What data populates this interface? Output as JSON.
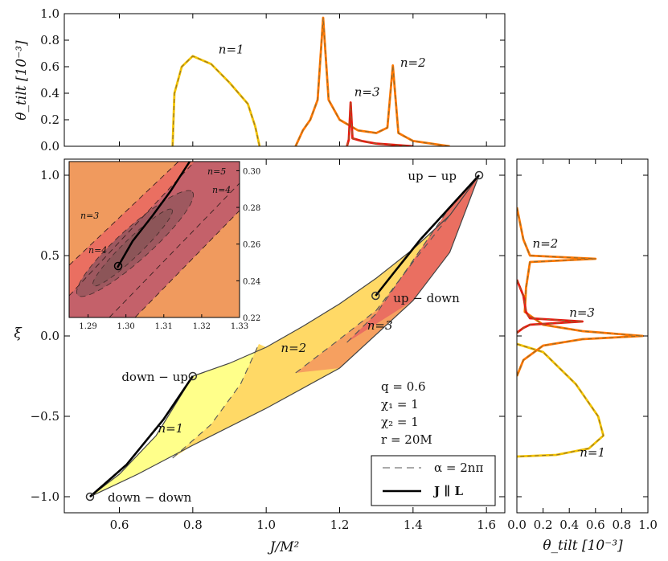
{
  "chart_data": {
    "type": "line",
    "title": "",
    "main": {
      "xlabel": "J/M²",
      "ylabel": "ξ",
      "xlim": [
        0.45,
        1.65
      ],
      "ylim": [
        -1.1,
        1.1
      ],
      "xticks": [
        0.6,
        0.8,
        1.0,
        1.2,
        1.4,
        1.6
      ],
      "xtick_labels": [
        "0.6",
        "0.8",
        "1.0",
        "1.2",
        "1.4",
        "1.6"
      ],
      "yticks": [
        -1.0,
        -0.5,
        0.0,
        0.5,
        1.0
      ],
      "ytick_labels": [
        "−1.0",
        "−0.5",
        "0.0",
        "0.5",
        "1.0"
      ],
      "boundary_lower": [
        [
          0.52,
          -1.0
        ],
        [
          0.65,
          -0.86
        ],
        [
          0.8,
          -0.68
        ],
        [
          1.0,
          -0.45
        ],
        [
          1.2,
          -0.2
        ],
        [
          1.4,
          0.22
        ],
        [
          1.5,
          0.52
        ],
        [
          1.58,
          1.0
        ]
      ],
      "boundary_upper": [
        [
          0.52,
          -1.0
        ],
        [
          0.6,
          -0.86
        ],
        [
          0.7,
          -0.62
        ],
        [
          0.8,
          -0.25
        ],
        [
          0.9,
          -0.17
        ],
        [
          1.0,
          -0.07
        ],
        [
          1.1,
          0.06
        ],
        [
          1.2,
          0.2
        ],
        [
          1.3,
          0.36
        ],
        [
          1.4,
          0.54
        ],
        [
          1.5,
          0.75
        ],
        [
          1.58,
          1.0
        ]
      ],
      "resonance_lines_alpha_2npi": [
        {
          "n": 1,
          "points": [
            [
              0.745,
              -0.76
            ],
            [
              0.85,
              -0.55
            ],
            [
              0.93,
              -0.3
            ],
            [
              0.98,
              -0.05
            ]
          ]
        },
        {
          "n": 2,
          "points": [
            [
              1.08,
              -0.23
            ],
            [
              1.2,
              -0.02
            ],
            [
              1.3,
              0.16
            ],
            [
              1.4,
              0.46
            ],
            [
              1.5,
              0.75
            ]
          ]
        },
        {
          "n": 3,
          "points": [
            [
              1.22,
              -0.04
            ],
            [
              1.3,
              0.14
            ],
            [
              1.4,
              0.47
            ],
            [
              1.5,
              0.8
            ]
          ]
        }
      ],
      "j_parallel_l": [
        {
          "points": [
            [
              0.52,
              -1.0
            ],
            [
              0.62,
              -0.8
            ],
            [
              0.72,
              -0.52
            ],
            [
              0.8,
              -0.25
            ]
          ]
        },
        {
          "points": [
            [
              1.298,
              0.25
            ],
            [
              1.35,
              0.4
            ],
            [
              1.42,
              0.6
            ],
            [
              1.5,
              0.8
            ],
            [
              1.58,
              1.0
            ]
          ]
        }
      ],
      "points": [
        {
          "label": "up − up",
          "x": 1.58,
          "y": 1.0
        },
        {
          "label": "up − down",
          "x": 1.298,
          "y": 0.25
        },
        {
          "label": "down − up",
          "x": 0.8,
          "y": -0.25
        },
        {
          "label": "down − down",
          "x": 0.52,
          "y": -1.0
        }
      ],
      "region_labels": [
        {
          "label": "n=1",
          "x": 0.705,
          "y": -0.6
        },
        {
          "label": "n=2",
          "x": 1.04,
          "y": -0.1
        },
        {
          "label": "n=3",
          "x": 1.275,
          "y": 0.04
        }
      ],
      "params": [
        "q = 0.6",
        "χ₁ = 1",
        "χ₂ = 1",
        "r = 20M"
      ]
    },
    "top": {
      "xlabel": "",
      "ylabel": "θ_tilt  [10⁻³]",
      "xlim": [
        0.45,
        1.65
      ],
      "ylim": [
        0.0,
        1.0
      ],
      "yticks": [
        0.0,
        0.2,
        0.4,
        0.6,
        0.8,
        1.0
      ],
      "ytick_labels": [
        "0.0",
        "0.2",
        "0.4",
        "0.6",
        "0.8",
        "1.0"
      ],
      "series": [
        {
          "name": "n=1",
          "color": "#f2c200",
          "points": [
            [
              0.745,
              0.0
            ],
            [
              0.75,
              0.4
            ],
            [
              0.77,
              0.6
            ],
            [
              0.8,
              0.68
            ],
            [
              0.85,
              0.62
            ],
            [
              0.9,
              0.48
            ],
            [
              0.95,
              0.32
            ],
            [
              0.97,
              0.15
            ],
            [
              0.982,
              0.0
            ]
          ]
        },
        {
          "name": "n=2",
          "color": "#ff7700",
          "points": [
            [
              1.08,
              0.0
            ],
            [
              1.1,
              0.12
            ],
            [
              1.12,
              0.2
            ],
            [
              1.14,
              0.35
            ],
            [
              1.155,
              0.97
            ],
            [
              1.17,
              0.35
            ],
            [
              1.2,
              0.2
            ],
            [
              1.25,
              0.12
            ],
            [
              1.3,
              0.1
            ],
            [
              1.33,
              0.14
            ],
            [
              1.345,
              0.61
            ],
            [
              1.36,
              0.1
            ],
            [
              1.4,
              0.04
            ],
            [
              1.5,
              0.0
            ]
          ]
        },
        {
          "name": "n=3",
          "color": "#e8190f",
          "points": [
            [
              1.22,
              0.0
            ],
            [
              1.225,
              0.05
            ],
            [
              1.23,
              0.33
            ],
            [
              1.235,
              0.06
            ],
            [
              1.26,
              0.04
            ],
            [
              1.3,
              0.02
            ],
            [
              1.35,
              0.01
            ],
            [
              1.4,
              0.0
            ]
          ]
        }
      ],
      "labels": [
        {
          "text": "n=1",
          "x": 0.87,
          "y": 0.7
        },
        {
          "text": "n=3",
          "x": 1.24,
          "y": 0.38
        },
        {
          "text": "n=2",
          "x": 1.365,
          "y": 0.6
        }
      ]
    },
    "right": {
      "xlabel": "θ_tilt  [10⁻³]",
      "xlim": [
        0.0,
        1.0
      ],
      "ylim": [
        -1.1,
        1.1
      ],
      "xticks": [
        0.0,
        0.2,
        0.4,
        0.6,
        0.8,
        1.0
      ],
      "xtick_labels": [
        "0.0",
        "0.2",
        "0.4",
        "0.6",
        "0.8",
        "1.0"
      ],
      "series": [
        {
          "name": "n=1",
          "color": "#f2c200",
          "points": [
            [
              0.0,
              -0.05
            ],
            [
              0.2,
              -0.1
            ],
            [
              0.45,
              -0.3
            ],
            [
              0.62,
              -0.5
            ],
            [
              0.66,
              -0.62
            ],
            [
              0.55,
              -0.7
            ],
            [
              0.3,
              -0.74
            ],
            [
              0.0,
              -0.75
            ]
          ]
        },
        {
          "name": "n=2",
          "color": "#ff7700",
          "points": [
            [
              0.0,
              0.8
            ],
            [
              0.05,
              0.6
            ],
            [
              0.1,
              0.5
            ],
            [
              0.6,
              0.48
            ],
            [
              0.1,
              0.46
            ],
            [
              0.07,
              0.3
            ],
            [
              0.06,
              0.15
            ],
            [
              0.2,
              0.07
            ],
            [
              0.5,
              0.03
            ],
            [
              0.96,
              0.0
            ],
            [
              0.5,
              -0.02
            ],
            [
              0.2,
              -0.06
            ],
            [
              0.05,
              -0.15
            ],
            [
              0.0,
              -0.25
            ]
          ]
        },
        {
          "name": "n=3",
          "color": "#e8190f",
          "points": [
            [
              0.0,
              0.35
            ],
            [
              0.05,
              0.25
            ],
            [
              0.07,
              0.15
            ],
            [
              0.1,
              0.11
            ],
            [
              0.5,
              0.09
            ],
            [
              0.1,
              0.07
            ],
            [
              0.05,
              0.05
            ],
            [
              0.0,
              0.02
            ]
          ]
        }
      ],
      "labels": [
        {
          "text": "n=2",
          "x": 0.12,
          "y": 0.55
        },
        {
          "text": "n=3",
          "x": 0.4,
          "y": 0.12
        },
        {
          "text": "n=1",
          "x": 0.48,
          "y": -0.75
        }
      ]
    },
    "inset": {
      "xlim": [
        1.285,
        1.33
      ],
      "ylim": [
        0.22,
        0.305
      ],
      "xticks": [
        1.29,
        1.3,
        1.31,
        1.32,
        1.33
      ],
      "xtick_labels": [
        "1.29",
        "1.30",
        "1.31",
        "1.32",
        "1.33"
      ],
      "yticks": [
        0.22,
        0.24,
        0.26,
        0.28,
        0.3
      ],
      "ytick_labels": [
        "0.22",
        "0.24",
        "0.26",
        "0.28",
        "0.30"
      ],
      "labels": [
        "n=3",
        "n=4",
        "n=5",
        "n=4"
      ]
    },
    "legend": [
      {
        "label": "α = 2nπ",
        "style": "dashed"
      },
      {
        "label": "J ∥ L",
        "style": "solid"
      }
    ]
  }
}
